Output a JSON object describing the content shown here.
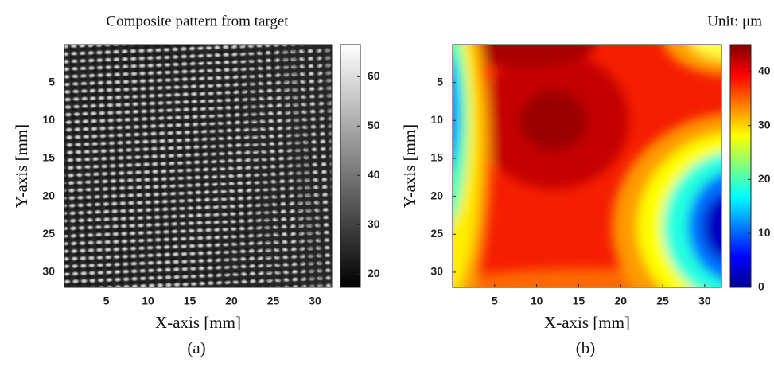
{
  "chart_data": [
    {
      "type": "heatmap",
      "title": "Composite pattern from target",
      "xlabel": "X-axis [mm]",
      "ylabel": "Y-axis [mm]",
      "caption": "(a)",
      "xlim": [
        0,
        32
      ],
      "ylim": [
        0,
        32
      ],
      "xticks": [
        5,
        10,
        15,
        20,
        25,
        30
      ],
      "yticks": [
        5,
        10,
        15,
        20,
        25,
        30
      ],
      "colormap": "gray",
      "clim": [
        17.3,
        66.5
      ],
      "cticks": [
        20,
        30,
        40,
        50,
        60
      ]
    },
    {
      "type": "heatmap",
      "title": "Unit: μm",
      "xlabel": "X-axis [mm]",
      "ylabel": "Y-axis [mm]",
      "caption": "(b)",
      "xlim": [
        0,
        32
      ],
      "ylim": [
        0,
        32
      ],
      "xticks": [
        5,
        10,
        15,
        20,
        25,
        30
      ],
      "yticks": [
        5,
        10,
        15,
        20,
        25,
        30
      ],
      "colormap": "jet",
      "clim": [
        0,
        45
      ],
      "cticks": [
        0,
        10,
        20,
        30,
        40
      ]
    }
  ]
}
